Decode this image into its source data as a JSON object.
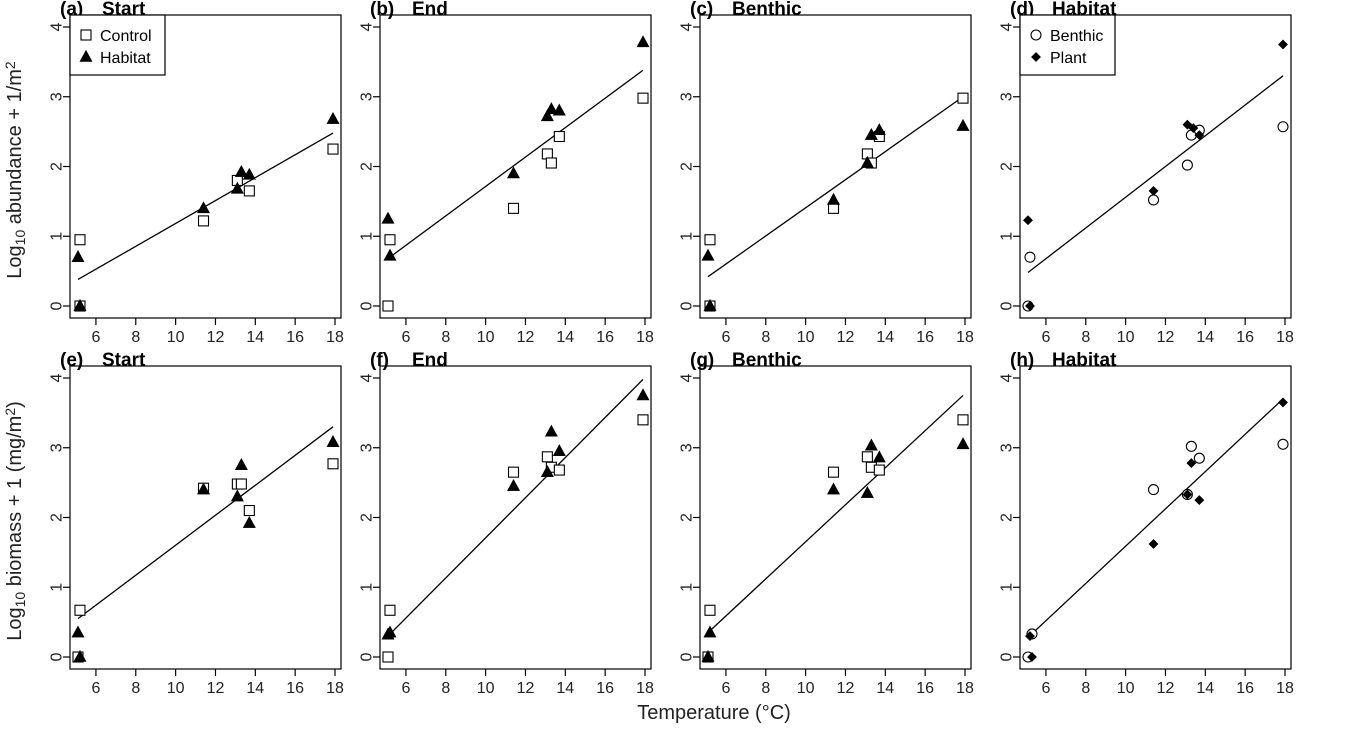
{
  "xlabel": "Temperature (°C)",
  "ylabel_top": {
    "pre": "Log",
    "sub": "10",
    "post": " abundance + 1/m",
    "sup": "2"
  },
  "ylabel_bottom": {
    "pre": "Log",
    "sub": "10",
    "post": " biomass + 1 (mg/m",
    "sup": "2",
    "tail": ")"
  },
  "chart_data": [
    {
      "type": "scatter",
      "label": "(a)",
      "title": "Start",
      "xlim": [
        5,
        18
      ],
      "ylim": [
        0,
        4
      ],
      "xticks": [
        6,
        8,
        10,
        12,
        14,
        16,
        18
      ],
      "yticks": [
        0,
        1,
        2,
        3,
        4
      ],
      "legend": {
        "position": "top-left",
        "entries": [
          "Control",
          "Habitat"
        ]
      },
      "series": [
        {
          "name": "Control",
          "marker": "open-square",
          "points": [
            [
              5.2,
              0.95
            ],
            [
              5.2,
              0.0
            ],
            [
              11.4,
              1.22
            ],
            [
              13.1,
              1.8
            ],
            [
              13.7,
              1.65
            ],
            [
              17.9,
              2.25
            ]
          ]
        },
        {
          "name": "Habitat",
          "marker": "filled-triangle",
          "points": [
            [
              5.1,
              0.7
            ],
            [
              5.2,
              0.0
            ],
            [
              11.4,
              1.4
            ],
            [
              13.1,
              1.68
            ],
            [
              13.3,
              1.92
            ],
            [
              13.7,
              1.88
            ],
            [
              17.9,
              2.68
            ]
          ]
        }
      ],
      "fit": [
        [
          5.1,
          0.38
        ],
        [
          17.9,
          2.48
        ]
      ]
    },
    {
      "type": "scatter",
      "label": "(b)",
      "title": "End",
      "xlim": [
        5,
        18
      ],
      "ylim": [
        0,
        4
      ],
      "xticks": [
        6,
        8,
        10,
        12,
        14,
        16,
        18
      ],
      "yticks": [
        0,
        1,
        2,
        3,
        4
      ],
      "series": [
        {
          "name": "Control",
          "marker": "open-square",
          "points": [
            [
              5.2,
              0.95
            ],
            [
              5.1,
              0.0
            ],
            [
              11.4,
              1.4
            ],
            [
              13.1,
              2.18
            ],
            [
              13.3,
              2.05
            ],
            [
              13.7,
              2.43
            ],
            [
              17.9,
              2.98
            ]
          ]
        },
        {
          "name": "Habitat",
          "marker": "filled-triangle",
          "points": [
            [
              5.1,
              1.25
            ],
            [
              5.2,
              0.72
            ],
            [
              11.4,
              1.9
            ],
            [
              13.1,
              2.72
            ],
            [
              13.3,
              2.82
            ],
            [
              13.7,
              2.8
            ],
            [
              17.9,
              3.78
            ]
          ]
        }
      ],
      "fit": [
        [
          5.1,
          0.68
        ],
        [
          17.9,
          3.38
        ]
      ]
    },
    {
      "type": "scatter",
      "label": "(c)",
      "title": "Benthic",
      "xlim": [
        5,
        18
      ],
      "ylim": [
        0,
        4
      ],
      "xticks": [
        6,
        8,
        10,
        12,
        14,
        16,
        18
      ],
      "yticks": [
        0,
        1,
        2,
        3,
        4
      ],
      "series": [
        {
          "name": "Control",
          "marker": "open-square",
          "points": [
            [
              5.2,
              0.95
            ],
            [
              5.2,
              0.0
            ],
            [
              11.4,
              1.4
            ],
            [
              13.1,
              2.18
            ],
            [
              13.3,
              2.05
            ],
            [
              13.7,
              2.43
            ],
            [
              17.9,
              2.98
            ]
          ]
        },
        {
          "name": "Habitat",
          "marker": "filled-triangle",
          "points": [
            [
              5.1,
              0.72
            ],
            [
              5.2,
              0.0
            ],
            [
              11.4,
              1.52
            ],
            [
              13.1,
              2.05
            ],
            [
              13.3,
              2.45
            ],
            [
              13.7,
              2.52
            ],
            [
              17.9,
              2.58
            ]
          ]
        }
      ],
      "fit": [
        [
          5.1,
          0.42
        ],
        [
          17.9,
          3.0
        ]
      ]
    },
    {
      "type": "scatter",
      "label": "(d)",
      "title": "Habitat",
      "xlim": [
        5,
        18
      ],
      "ylim": [
        0,
        4
      ],
      "xticks": [
        6,
        8,
        10,
        12,
        14,
        16,
        18
      ],
      "yticks": [
        0,
        1,
        2,
        3,
        4
      ],
      "legend": {
        "position": "top-left",
        "entries": [
          "Benthic",
          "Plant"
        ]
      },
      "series": [
        {
          "name": "Benthic",
          "marker": "open-circle",
          "points": [
            [
              5.2,
              0.7
            ],
            [
              5.1,
              0.0
            ],
            [
              11.4,
              1.52
            ],
            [
              13.1,
              2.02
            ],
            [
              13.3,
              2.45
            ],
            [
              13.7,
              2.52
            ],
            [
              17.9,
              2.57
            ]
          ]
        },
        {
          "name": "Plant",
          "marker": "filled-diamond",
          "points": [
            [
              5.1,
              1.23
            ],
            [
              5.2,
              0.0
            ],
            [
              11.4,
              1.65
            ],
            [
              13.1,
              2.6
            ],
            [
              13.4,
              2.55
            ],
            [
              13.7,
              2.45
            ],
            [
              17.9,
              3.75
            ]
          ]
        }
      ],
      "fit": [
        [
          5.1,
          0.48
        ],
        [
          17.9,
          3.3
        ]
      ]
    },
    {
      "type": "scatter",
      "label": "(e)",
      "title": "Start",
      "xlim": [
        5,
        18
      ],
      "ylim": [
        0,
        4
      ],
      "xticks": [
        6,
        8,
        10,
        12,
        14,
        16,
        18
      ],
      "yticks": [
        0,
        1,
        2,
        3,
        4
      ],
      "series": [
        {
          "name": "Control",
          "marker": "open-square",
          "points": [
            [
              5.2,
              0.67
            ],
            [
              5.1,
              0.0
            ],
            [
              11.4,
              2.42
            ],
            [
              13.1,
              2.48
            ],
            [
              13.3,
              2.48
            ],
            [
              13.7,
              2.1
            ],
            [
              17.9,
              2.77
            ]
          ]
        },
        {
          "name": "Habitat",
          "marker": "filled-triangle",
          "points": [
            [
              5.1,
              0.35
            ],
            [
              5.2,
              0.0
            ],
            [
              11.4,
              2.4
            ],
            [
              13.1,
              2.3
            ],
            [
              13.3,
              2.75
            ],
            [
              13.7,
              1.92
            ],
            [
              17.9,
              3.08
            ]
          ]
        }
      ],
      "fit": [
        [
          5.1,
          0.55
        ],
        [
          17.9,
          3.3
        ]
      ]
    },
    {
      "type": "scatter",
      "label": "(f)",
      "title": "End",
      "xlim": [
        5,
        18
      ],
      "ylim": [
        0,
        4
      ],
      "xticks": [
        6,
        8,
        10,
        12,
        14,
        16,
        18
      ],
      "yticks": [
        0,
        1,
        2,
        3,
        4
      ],
      "series": [
        {
          "name": "Control",
          "marker": "open-square",
          "points": [
            [
              5.2,
              0.67
            ],
            [
              5.1,
              0.0
            ],
            [
              11.4,
              2.65
            ],
            [
              13.1,
              2.87
            ],
            [
              13.3,
              2.72
            ],
            [
              13.7,
              2.68
            ],
            [
              17.9,
              3.4
            ]
          ]
        },
        {
          "name": "Habitat",
          "marker": "filled-triangle",
          "points": [
            [
              5.1,
              0.32
            ],
            [
              5.2,
              0.35
            ],
            [
              11.4,
              2.45
            ],
            [
              13.1,
              2.65
            ],
            [
              13.3,
              3.23
            ],
            [
              13.7,
              2.95
            ],
            [
              17.9,
              3.75
            ]
          ]
        }
      ],
      "fit": [
        [
          5.1,
          0.3
        ],
        [
          17.9,
          3.98
        ]
      ]
    },
    {
      "type": "scatter",
      "label": "(g)",
      "title": "Benthic",
      "xlim": [
        5,
        18
      ],
      "ylim": [
        0,
        4
      ],
      "xticks": [
        6,
        8,
        10,
        12,
        14,
        16,
        18
      ],
      "yticks": [
        0,
        1,
        2,
        3,
        4
      ],
      "series": [
        {
          "name": "Control",
          "marker": "open-square",
          "points": [
            [
              5.2,
              0.67
            ],
            [
              5.1,
              0.0
            ],
            [
              11.4,
              2.65
            ],
            [
              13.1,
              2.87
            ],
            [
              13.3,
              2.72
            ],
            [
              13.7,
              2.68
            ],
            [
              17.9,
              3.4
            ]
          ]
        },
        {
          "name": "Habitat",
          "marker": "filled-triangle",
          "points": [
            [
              5.2,
              0.35
            ],
            [
              5.1,
              0.0
            ],
            [
              11.4,
              2.4
            ],
            [
              13.1,
              2.35
            ],
            [
              13.3,
              3.03
            ],
            [
              13.7,
              2.86
            ],
            [
              17.9,
              3.05
            ]
          ]
        }
      ],
      "fit": [
        [
          5.1,
          0.35
        ],
        [
          17.9,
          3.75
        ]
      ]
    },
    {
      "type": "scatter",
      "label": "(h)",
      "title": "Habitat",
      "xlim": [
        5,
        18
      ],
      "ylim": [
        0,
        4
      ],
      "xticks": [
        6,
        8,
        10,
        12,
        14,
        16,
        18
      ],
      "yticks": [
        0,
        1,
        2,
        3,
        4
      ],
      "series": [
        {
          "name": "Benthic",
          "marker": "open-circle",
          "points": [
            [
              5.3,
              0.33
            ],
            [
              5.1,
              0.0
            ],
            [
              11.4,
              2.4
            ],
            [
              13.1,
              2.33
            ],
            [
              13.3,
              3.02
            ],
            [
              13.7,
              2.85
            ],
            [
              17.9,
              3.05
            ]
          ]
        },
        {
          "name": "Plant",
          "marker": "filled-diamond",
          "points": [
            [
              5.2,
              0.3
            ],
            [
              5.3,
              0.0
            ],
            [
              11.4,
              1.62
            ],
            [
              13.1,
              2.33
            ],
            [
              13.3,
              2.78
            ],
            [
              13.7,
              2.25
            ],
            [
              17.9,
              3.65
            ]
          ]
        }
      ],
      "fit": [
        [
          5.1,
          0.28
        ],
        [
          17.9,
          3.7
        ]
      ]
    }
  ]
}
